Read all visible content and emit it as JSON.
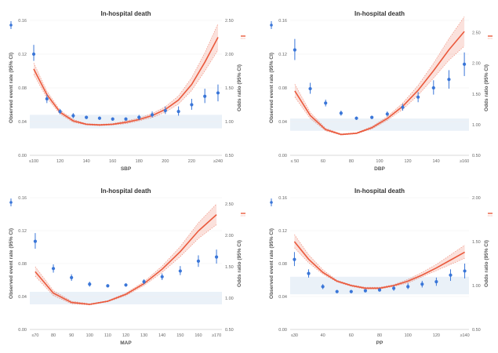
{
  "colors": {
    "observed": "#3a76d8",
    "odds": "#ea5a3d",
    "band": "#eaf1f8"
  },
  "chart_data": [
    {
      "type": "scatter",
      "title": "In-hospital death",
      "xlabel": "SBP",
      "ylabel_left": "Observed event rate (95% CI)",
      "ylabel_right": "Odds ratio (95% CI)",
      "x_tick_labels": [
        "≤100",
        "120",
        "140",
        "160",
        "180",
        "200",
        "220",
        "≥240"
      ],
      "y_left_ticks": [
        "0.00",
        "0.04",
        "0.08",
        "0.12",
        "0.16"
      ],
      "y_right_ticks": [
        "0.50",
        "1.00",
        "1.50",
        "2.00",
        "2.50"
      ],
      "ylim_left": [
        0,
        0.16
      ],
      "ylim_right": [
        0.5,
        2.5
      ],
      "xlim": [
        -0.3,
        14.3
      ],
      "band_right": [
        0.9,
        1.1
      ],
      "observed": [
        {
          "x": 0,
          "y": 0.12,
          "lo": 0.112,
          "hi": 0.131
        },
        {
          "x": 1,
          "y": 0.067,
          "lo": 0.062,
          "hi": 0.072
        },
        {
          "x": 2,
          "y": 0.052,
          "lo": 0.049,
          "hi": 0.055
        },
        {
          "x": 3,
          "y": 0.047,
          "lo": 0.044,
          "hi": 0.05
        },
        {
          "x": 4,
          "y": 0.045,
          "lo": 0.043,
          "hi": 0.047
        },
        {
          "x": 5,
          "y": 0.044,
          "lo": 0.042,
          "hi": 0.046
        },
        {
          "x": 6,
          "y": 0.043,
          "lo": 0.041,
          "hi": 0.045
        },
        {
          "x": 7,
          "y": 0.043,
          "lo": 0.041,
          "hi": 0.045
        },
        {
          "x": 8,
          "y": 0.045,
          "lo": 0.042,
          "hi": 0.048
        },
        {
          "x": 9,
          "y": 0.048,
          "lo": 0.045,
          "hi": 0.052
        },
        {
          "x": 10,
          "y": 0.053,
          "lo": 0.049,
          "hi": 0.058
        },
        {
          "x": 11,
          "y": 0.052,
          "lo": 0.047,
          "hi": 0.058
        },
        {
          "x": 12,
          "y": 0.06,
          "lo": 0.054,
          "hi": 0.067
        },
        {
          "x": 13,
          "y": 0.07,
          "lo": 0.062,
          "hi": 0.079
        },
        {
          "x": 14,
          "y": 0.074,
          "lo": 0.064,
          "hi": 0.084
        }
      ],
      "odds_curve": {
        "x": [
          0,
          1,
          2,
          3,
          4,
          5,
          6,
          7,
          8,
          9,
          10,
          11,
          12,
          13,
          14
        ],
        "y": [
          1.78,
          1.4,
          1.14,
          1.01,
          0.96,
          0.95,
          0.96,
          0.99,
          1.03,
          1.09,
          1.18,
          1.32,
          1.55,
          1.88,
          2.25
        ],
        "lo": [
          1.7,
          1.35,
          1.11,
          0.99,
          0.95,
          0.94,
          0.95,
          0.97,
          1.01,
          1.06,
          1.14,
          1.26,
          1.46,
          1.75,
          2.06
        ],
        "hi": [
          1.87,
          1.45,
          1.17,
          1.03,
          0.97,
          0.96,
          0.97,
          1.01,
          1.05,
          1.12,
          1.22,
          1.38,
          1.65,
          2.02,
          2.45
        ]
      }
    },
    {
      "type": "scatter",
      "title": "In-hospital death",
      "xlabel": "DBP",
      "ylabel_left": "Observed event rate (95% CI)",
      "ylabel_right": "Odds ratio (95% CI)",
      "x_tick_labels": [
        "≤ 50",
        "60",
        "80",
        "100",
        "120",
        "140",
        "≥160"
      ],
      "y_left_ticks": [
        "0.00",
        "0.04",
        "0.08",
        "0.12",
        "0.16"
      ],
      "y_right_ticks": [
        "0.50",
        "1.00",
        "1.50",
        "2.00",
        "2.50"
      ],
      "ylim_left": [
        0,
        0.16
      ],
      "ylim_right": [
        0.5,
        2.7
      ],
      "xlim": [
        -0.3,
        11.3
      ],
      "band_right": [
        0.9,
        1.1
      ],
      "observed": [
        {
          "x": 0,
          "y": 0.125,
          "lo": 0.113,
          "hi": 0.138
        },
        {
          "x": 1,
          "y": 0.079,
          "lo": 0.073,
          "hi": 0.086
        },
        {
          "x": 2,
          "y": 0.062,
          "lo": 0.058,
          "hi": 0.066
        },
        {
          "x": 3,
          "y": 0.05,
          "lo": 0.047,
          "hi": 0.053
        },
        {
          "x": 4,
          "y": 0.044,
          "lo": 0.042,
          "hi": 0.046
        },
        {
          "x": 5,
          "y": 0.045,
          "lo": 0.043,
          "hi": 0.047
        },
        {
          "x": 6,
          "y": 0.049,
          "lo": 0.046,
          "hi": 0.052
        },
        {
          "x": 7,
          "y": 0.057,
          "lo": 0.053,
          "hi": 0.061
        },
        {
          "x": 8,
          "y": 0.069,
          "lo": 0.063,
          "hi": 0.075
        },
        {
          "x": 9,
          "y": 0.08,
          "lo": 0.072,
          "hi": 0.089
        },
        {
          "x": 10,
          "y": 0.09,
          "lo": 0.079,
          "hi": 0.101
        },
        {
          "x": 11,
          "y": 0.108,
          "lo": 0.094,
          "hi": 0.122
        }
      ],
      "odds_curve": {
        "x": [
          0,
          1,
          2,
          3,
          4,
          5,
          6,
          7,
          8,
          9,
          10,
          11
        ],
        "y": [
          1.55,
          1.15,
          0.92,
          0.84,
          0.86,
          0.95,
          1.1,
          1.3,
          1.56,
          1.88,
          2.22,
          2.52
        ],
        "lo": [
          1.45,
          1.1,
          0.9,
          0.83,
          0.85,
          0.93,
          1.07,
          1.25,
          1.48,
          1.76,
          2.05,
          2.28
        ],
        "hi": [
          1.66,
          1.2,
          0.94,
          0.85,
          0.87,
          0.97,
          1.13,
          1.35,
          1.64,
          2.0,
          2.4,
          2.76
        ]
      }
    },
    {
      "type": "scatter",
      "title": "In-hospital death",
      "xlabel": "MAP",
      "ylabel_left": "Observed event rate (95% CI)",
      "ylabel_right": "Odds ratio (95% CI)",
      "x_tick_labels": [
        "≤70",
        "80",
        "90",
        "100",
        "110",
        "120",
        "130",
        "140",
        "150",
        "160",
        "≥170"
      ],
      "y_left_ticks": [
        "0.00",
        "0.04",
        "0.08",
        "0.12",
        "0.16"
      ],
      "y_right_ticks": [
        "0.50",
        "1.00",
        "1.50",
        "2.00",
        "2.50"
      ],
      "ylim_left": [
        0,
        0.16
      ],
      "ylim_right": [
        0.5,
        2.6
      ],
      "xlim": [
        -0.3,
        10.3
      ],
      "band_right": [
        0.9,
        1.1
      ],
      "observed": [
        {
          "x": 0,
          "y": 0.107,
          "lo": 0.098,
          "hi": 0.117
        },
        {
          "x": 1,
          "y": 0.074,
          "lo": 0.069,
          "hi": 0.079
        },
        {
          "x": 2,
          "y": 0.063,
          "lo": 0.059,
          "hi": 0.067
        },
        {
          "x": 3,
          "y": 0.055,
          "lo": 0.052,
          "hi": 0.058
        },
        {
          "x": 4,
          "y": 0.053,
          "lo": 0.051,
          "hi": 0.055
        },
        {
          "x": 5,
          "y": 0.054,
          "lo": 0.052,
          "hi": 0.056
        },
        {
          "x": 6,
          "y": 0.058,
          "lo": 0.055,
          "hi": 0.061
        },
        {
          "x": 7,
          "y": 0.064,
          "lo": 0.06,
          "hi": 0.068
        },
        {
          "x": 8,
          "y": 0.071,
          "lo": 0.066,
          "hi": 0.077
        },
        {
          "x": 9,
          "y": 0.083,
          "lo": 0.076,
          "hi": 0.09
        },
        {
          "x": 10,
          "y": 0.088,
          "lo": 0.08,
          "hi": 0.097
        }
      ],
      "odds_curve": {
        "x": [
          0,
          1,
          2,
          3,
          4,
          5,
          6,
          7,
          8,
          9,
          10
        ],
        "y": [
          1.42,
          1.08,
          0.93,
          0.9,
          0.95,
          1.06,
          1.23,
          1.46,
          1.74,
          2.07,
          2.33
        ],
        "lo": [
          1.35,
          1.04,
          0.91,
          0.89,
          0.94,
          1.04,
          1.2,
          1.41,
          1.66,
          1.95,
          2.17
        ],
        "hi": [
          1.5,
          1.12,
          0.95,
          0.91,
          0.96,
          1.08,
          1.26,
          1.51,
          1.82,
          2.2,
          2.5
        ]
      }
    },
    {
      "type": "scatter",
      "title": "In-hospital death",
      "xlabel": "PP",
      "ylabel_left": "Observed event rate (95% CI)",
      "ylabel_right": "Odds ratio (95% CI)",
      "x_tick_labels": [
        "≤30",
        "40",
        "60",
        "80",
        "100",
        "120",
        "≥140"
      ],
      "y_left_ticks": [
        "0.00",
        "0.04",
        "0.08",
        "0.12",
        "0.16"
      ],
      "y_right_ticks": [
        "0.50",
        "1.00",
        "1.50",
        "2.00"
      ],
      "ylim_left": [
        0,
        0.16
      ],
      "ylim_right": [
        0.5,
        2.0
      ],
      "xlim": [
        -0.3,
        12.3
      ],
      "band_right": [
        0.9,
        1.1
      ],
      "observed": [
        {
          "x": 0,
          "y": 0.085,
          "lo": 0.077,
          "hi": 0.094
        },
        {
          "x": 1,
          "y": 0.068,
          "lo": 0.063,
          "hi": 0.073
        },
        {
          "x": 2,
          "y": 0.052,
          "lo": 0.049,
          "hi": 0.055
        },
        {
          "x": 3,
          "y": 0.046,
          "lo": 0.044,
          "hi": 0.048
        },
        {
          "x": 4,
          "y": 0.046,
          "lo": 0.044,
          "hi": 0.048
        },
        {
          "x": 5,
          "y": 0.047,
          "lo": 0.045,
          "hi": 0.049
        },
        {
          "x": 6,
          "y": 0.048,
          "lo": 0.046,
          "hi": 0.05
        },
        {
          "x": 7,
          "y": 0.05,
          "lo": 0.047,
          "hi": 0.053
        },
        {
          "x": 8,
          "y": 0.052,
          "lo": 0.049,
          "hi": 0.056
        },
        {
          "x": 9,
          "y": 0.055,
          "lo": 0.051,
          "hi": 0.059
        },
        {
          "x": 10,
          "y": 0.058,
          "lo": 0.053,
          "hi": 0.063
        },
        {
          "x": 11,
          "y": 0.066,
          "lo": 0.059,
          "hi": 0.073
        },
        {
          "x": 12,
          "y": 0.071,
          "lo": 0.062,
          "hi": 0.08
        }
      ],
      "odds_curve": {
        "x": [
          0,
          1,
          2,
          3,
          4,
          5,
          6,
          7,
          8,
          9,
          10,
          11,
          12
        ],
        "y": [
          1.5,
          1.3,
          1.15,
          1.05,
          1.0,
          0.97,
          0.97,
          1.0,
          1.05,
          1.12,
          1.2,
          1.29,
          1.38
        ],
        "lo": [
          1.43,
          1.26,
          1.13,
          1.04,
          0.99,
          0.96,
          0.96,
          0.99,
          1.03,
          1.1,
          1.17,
          1.24,
          1.31
        ],
        "hi": [
          1.58,
          1.35,
          1.18,
          1.06,
          1.01,
          0.98,
          0.98,
          1.01,
          1.07,
          1.15,
          1.24,
          1.35,
          1.46
        ]
      }
    }
  ]
}
